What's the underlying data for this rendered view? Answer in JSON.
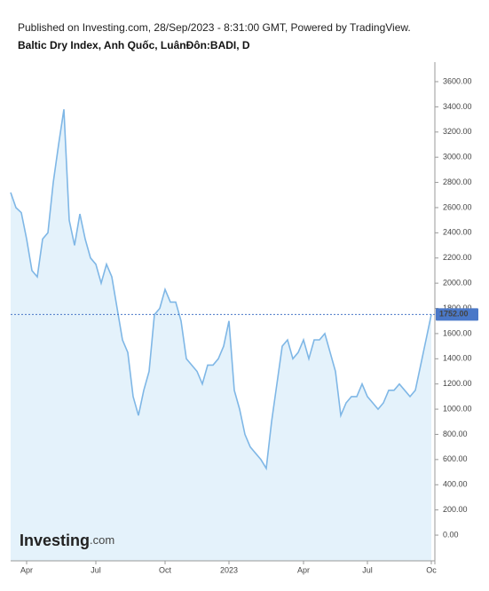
{
  "chart_data": {
    "type": "area",
    "subtitle": "Published on Investing.com, 28/Sep/2023 - 8:31:00 GMT, Powered by TradingView.",
    "title": "Baltic Dry Index, Anh Quốc, LuânĐôn:BADI, D",
    "brand": "Investing",
    "brand_suffix": ".com",
    "categories": [
      null,
      null,
      null,
      "Apr",
      null,
      null,
      null,
      null,
      null,
      null,
      null,
      null,
      null,
      null,
      null,
      null,
      "Jul",
      null,
      null,
      null,
      null,
      null,
      null,
      null,
      null,
      null,
      null,
      null,
      null,
      "Oct",
      null,
      null,
      null,
      null,
      null,
      null,
      null,
      null,
      null,
      null,
      null,
      "2023",
      null,
      null,
      null,
      null,
      null,
      null,
      null,
      null,
      null,
      null,
      null,
      null,
      null,
      "Apr",
      null,
      null,
      null,
      null,
      null,
      null,
      null,
      null,
      null,
      null,
      null,
      "Jul",
      null,
      null,
      null,
      null,
      null,
      null,
      null,
      null,
      null,
      null,
      null,
      "Oc"
    ],
    "values": [
      2720,
      2600,
      2560,
      2350,
      2100,
      2050,
      2350,
      2400,
      2800,
      3100,
      3380,
      2500,
      2300,
      2550,
      2350,
      2200,
      2150,
      2000,
      2150,
      2050,
      1800,
      1550,
      1450,
      1100,
      950,
      1150,
      1300,
      1750,
      1800,
      1950,
      1850,
      1850,
      1700,
      1400,
      1350,
      1300,
      1200,
      1350,
      1350,
      1400,
      1500,
      1700,
      1150,
      1000,
      800,
      700,
      650,
      600,
      530,
      900,
      1200,
      1500,
      1550,
      1400,
      1450,
      1550,
      1400,
      1550,
      1550,
      1600,
      1450,
      1300,
      950,
      1050,
      1100,
      1100,
      1200,
      1100,
      1050,
      1000,
      1050,
      1150,
      1150,
      1200,
      1150,
      1100,
      1150,
      1350,
      1550,
      1752
    ],
    "color": "#7fb7e6",
    "fill": "#e4f2fb",
    "ylim": [
      -204,
      3755
    ],
    "yticks": [
      {
        "value": 0,
        "label": "0.00"
      },
      {
        "value": 200,
        "label": "200.00"
      },
      {
        "value": 400,
        "label": "400.00"
      },
      {
        "value": 600,
        "label": "600.00"
      },
      {
        "value": 800,
        "label": "800.00"
      },
      {
        "value": 1000,
        "label": "1000.00"
      },
      {
        "value": 1200,
        "label": "1200.00"
      },
      {
        "value": 1400,
        "label": "1400.00"
      },
      {
        "value": 1600,
        "label": "1600.00"
      },
      {
        "value": 1800,
        "label": "1800.00"
      },
      {
        "value": 2000,
        "label": "2000.00"
      },
      {
        "value": 2200,
        "label": "2200.00"
      },
      {
        "value": 2400,
        "label": "2400.00"
      },
      {
        "value": 2600,
        "label": "2600.00"
      },
      {
        "value": 2800,
        "label": "2800.00"
      },
      {
        "value": 3000,
        "label": "3000.00"
      },
      {
        "value": 3200,
        "label": "3200.00"
      },
      {
        "value": 3400,
        "label": "3400.00"
      },
      {
        "value": 3600,
        "label": "3600.00"
      }
    ],
    "last_price": {
      "value": 1752,
      "label": "1752.00",
      "color": "#4a78c8"
    }
  }
}
